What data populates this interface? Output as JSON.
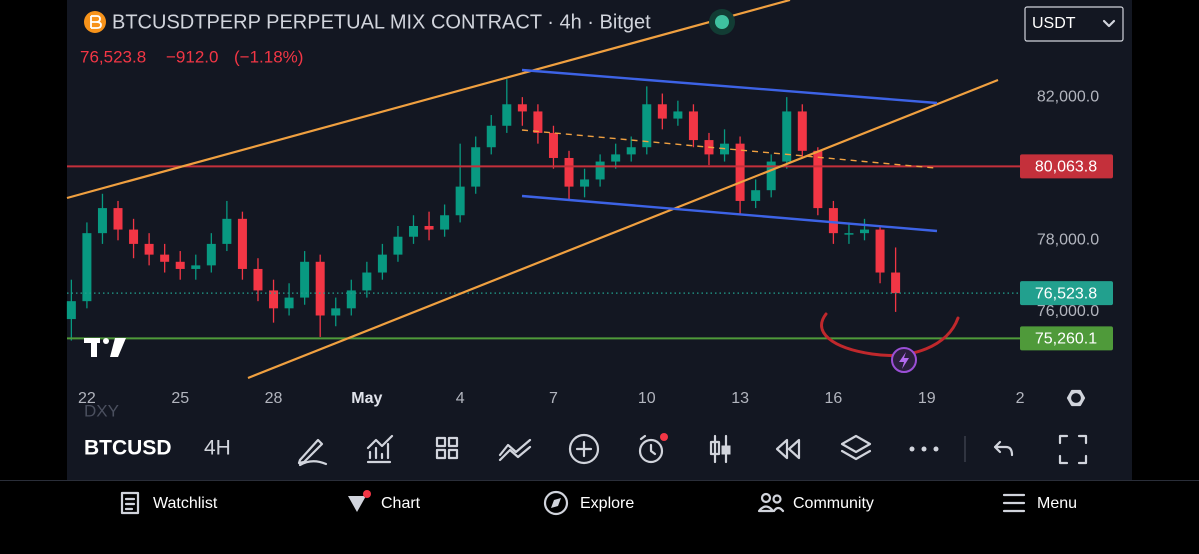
{
  "header": {
    "title": "BTCUSDTPERP PERPETUAL MIX CONTRACT · 4h · Bitget",
    "last": "76,523.8",
    "change": "−912.0",
    "change_pct": "(−1.18%)",
    "currency": "USDT"
  },
  "chart_data": {
    "type": "candlestick",
    "x": [
      -0.5,
      0,
      0.5,
      1,
      1.5,
      2,
      2.5,
      3,
      3.5,
      4,
      4.5,
      5,
      5.5,
      6,
      6.5,
      7,
      7.5,
      8,
      8.5,
      9,
      9.5,
      10,
      10.5,
      11,
      11.5,
      12,
      12.5,
      13,
      13.5,
      14,
      14.5,
      15,
      15.5,
      16,
      16.5,
      17,
      17.5,
      18,
      18.5,
      19,
      19.5,
      20,
      20.5,
      21,
      21.5,
      22,
      22.5,
      23,
      23.5,
      24,
      24.5,
      25,
      25.5,
      26
    ],
    "open": [
      75800,
      76300,
      78200,
      78900,
      78300,
      77900,
      77600,
      77400,
      77200,
      77300,
      77900,
      78600,
      77200,
      76600,
      76100,
      76400,
      77400,
      75900,
      76100,
      76600,
      77100,
      77600,
      78100,
      78400,
      78300,
      78700,
      79500,
      80600,
      81200,
      81800,
      81600,
      81000,
      80300,
      79500,
      79700,
      80200,
      80400,
      80600,
      81800,
      81400,
      81600,
      80800,
      80400,
      80700,
      79100,
      79400,
      80200,
      81600,
      80500,
      78900,
      78200,
      78200,
      78300,
      77100
    ],
    "high": [
      76900,
      78500,
      79300,
      79100,
      78600,
      78200,
      77900,
      77700,
      77600,
      78200,
      79100,
      78800,
      77500,
      76900,
      76800,
      77700,
      77600,
      76400,
      76900,
      77400,
      77900,
      78400,
      78700,
      78800,
      79000,
      80700,
      80900,
      81500,
      82500,
      82000,
      81800,
      81200,
      80500,
      80000,
      80400,
      80700,
      80900,
      82300,
      82100,
      81900,
      81800,
      81000,
      81100,
      80900,
      79700,
      80400,
      82000,
      81800,
      80600,
      79100,
      78500,
      78600,
      78400,
      77800
    ],
    "low": [
      75200,
      76100,
      77900,
      78000,
      77500,
      77300,
      77100,
      76900,
      76900,
      77100,
      77700,
      76900,
      76300,
      75700,
      75900,
      76200,
      75300,
      75600,
      75900,
      76400,
      76900,
      77400,
      77900,
      78000,
      78100,
      78500,
      79300,
      80400,
      81000,
      81200,
      80700,
      80000,
      79100,
      79200,
      79500,
      80000,
      80200,
      80400,
      81100,
      81200,
      80600,
      80100,
      80200,
      78700,
      78900,
      79200,
      80000,
      80300,
      78700,
      77900,
      77900,
      78000,
      76800,
      76000
    ],
    "close": [
      76300,
      78200,
      78900,
      78300,
      77900,
      77600,
      77400,
      77200,
      77300,
      77900,
      78600,
      77200,
      76600,
      76100,
      76400,
      77400,
      75900,
      76100,
      76600,
      77100,
      77600,
      78100,
      78400,
      78300,
      78700,
      79500,
      80600,
      81200,
      81800,
      81600,
      81000,
      80300,
      79500,
      79700,
      80200,
      80400,
      80600,
      81800,
      81400,
      81600,
      80800,
      80400,
      80700,
      79100,
      79400,
      80200,
      81600,
      80500,
      78900,
      78200,
      78200,
      78300,
      77100,
      76523.8
    ],
    "up_color": "#089981",
    "down_color": "#f23645",
    "xlim": [
      -0.64,
      33.6
    ],
    "ylim": [
      74014,
      84713
    ],
    "grid": false,
    "xticks": [
      {
        "value": 0,
        "label": "22"
      },
      {
        "value": 3,
        "label": "25"
      },
      {
        "value": 6,
        "label": "28"
      },
      {
        "value": 9,
        "label": "May"
      },
      {
        "value": 12,
        "label": "4"
      },
      {
        "value": 15,
        "label": "7"
      },
      {
        "value": 18,
        "label": "10"
      },
      {
        "value": 21,
        "label": "13"
      },
      {
        "value": 24,
        "label": "16"
      },
      {
        "value": 27,
        "label": "19"
      },
      {
        "value": 30,
        "label": "2"
      }
    ],
    "yticks": [
      {
        "value": 82000,
        "label": "82,000.0"
      },
      {
        "value": 78000,
        "label": "78,000.0"
      },
      {
        "value": 76000,
        "label": "76,000.0"
      }
    ],
    "price_lines": [
      {
        "value": 80063.8,
        "label": "80,063.8",
        "color": "#c4303b",
        "style": "solid"
      },
      {
        "value": 76523.8,
        "label": "76,523.8",
        "color": "#22a08e",
        "style": "dotted"
      },
      {
        "value": 75260.1,
        "label": "75,260.1",
        "color": "#4f9a3a",
        "style": "solid"
      }
    ],
    "overlay_label": "DXY"
  },
  "toolbar": {
    "symbol": "BTCUSD",
    "interval": "4H"
  },
  "nav": [
    "Watchlist",
    "Chart",
    "Explore",
    "Community",
    "Menu"
  ]
}
